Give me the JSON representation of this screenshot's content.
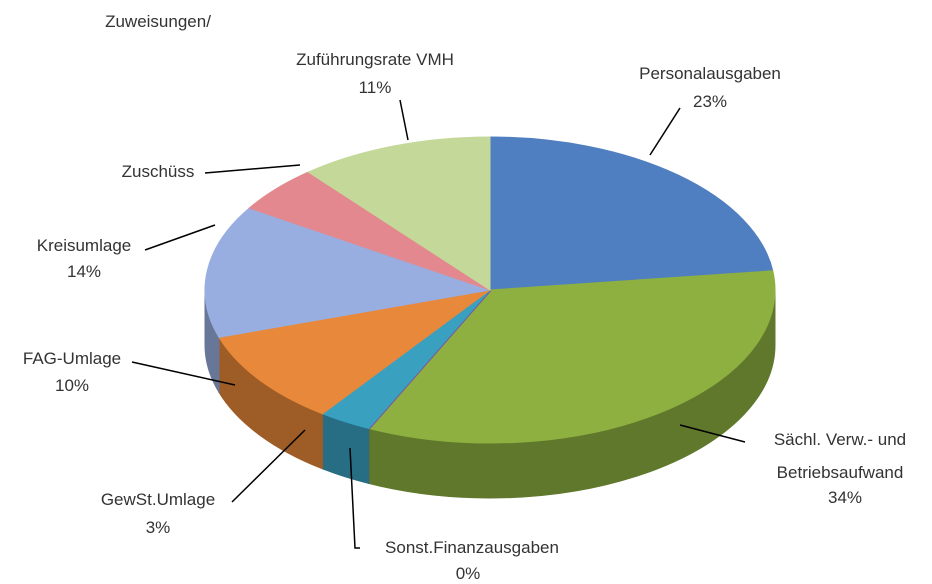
{
  "chart_data": {
    "type": "pie3d",
    "categories": [
      "Personalausgaben",
      "Sächl. Verw.- und Betriebsaufwand",
      "Sonst.Finanzausgaben",
      "GewSt.Umlage",
      "FAG-Umlage",
      "Kreisumlage",
      "Zuschüss",
      "Zuführungsrate VMH"
    ],
    "values": [
      23,
      34,
      0,
      3,
      10,
      14,
      5,
      11
    ],
    "value_labels": [
      "23%",
      "34%",
      "0%",
      "3%",
      "10%",
      "14%",
      null,
      "11%"
    ],
    "colors": [
      "#4f7fc0",
      "#8db040",
      "#7b55a5",
      "#3aa0c0",
      "#e8883a",
      "#99aee0",
      "#e2888e",
      "#c4d89a"
    ],
    "annotation": "Zuweisungen/"
  }
}
